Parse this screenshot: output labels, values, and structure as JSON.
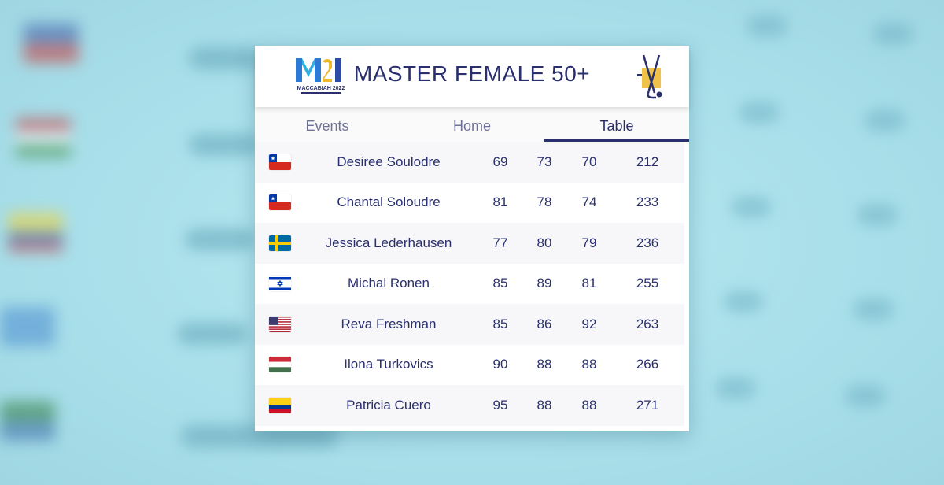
{
  "header": {
    "title": "MASTER FEMALE 50+",
    "logo_left": "M21",
    "logo_left_sub": "MACCABIAH 2022"
  },
  "tabs": [
    {
      "label": "Events",
      "active": false
    },
    {
      "label": "Home",
      "active": false
    },
    {
      "label": "Table",
      "active": true
    }
  ],
  "colors": {
    "accent": "#2a2f6e",
    "tab_inactive": "#6e7197"
  },
  "rows": [
    {
      "flag": "chile",
      "name": "Desiree Soulodre",
      "r1": "69",
      "r2": "73",
      "r3": "70",
      "total": "212"
    },
    {
      "flag": "chile",
      "name": "Chantal Soloudre",
      "r1": "81",
      "r2": "78",
      "r3": "74",
      "total": "233"
    },
    {
      "flag": "sweden",
      "name": "Jessica Lederhausen",
      "r1": "77",
      "r2": "80",
      "r3": "79",
      "total": "236"
    },
    {
      "flag": "israel",
      "name": "Michal Ronen",
      "r1": "85",
      "r2": "89",
      "r3": "81",
      "total": "255"
    },
    {
      "flag": "usa",
      "name": "Reva Freshman",
      "r1": "85",
      "r2": "86",
      "r3": "92",
      "total": "263"
    },
    {
      "flag": "hungary",
      "name": "Ilona Turkovics",
      "r1": "90",
      "r2": "88",
      "r3": "88",
      "total": "266"
    },
    {
      "flag": "colombia",
      "name": "Patricia Cuero",
      "r1": "95",
      "r2": "88",
      "r3": "88",
      "total": "271"
    }
  ]
}
